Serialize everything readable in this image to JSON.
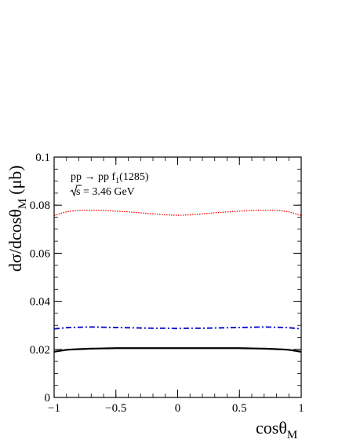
{
  "chart_data": {
    "type": "line",
    "xlabel": "cosθ",
    "xlabel_sub": "M",
    "ylabel": "dσ/dcosθ",
    "ylabel_sub": "M",
    "ylabel_unit": "(μb)",
    "xlim": [
      -1,
      1
    ],
    "ylim": [
      0,
      0.1
    ],
    "x_ticks": [
      -1,
      -0.5,
      0,
      0.5,
      1
    ],
    "x_tick_labels": [
      "−1",
      "−0.5",
      "0",
      "0.5",
      "1"
    ],
    "y_ticks": [
      0,
      0.02,
      0.04,
      0.06,
      0.08,
      0.1
    ],
    "y_tick_labels": [
      "0",
      "0.02",
      "0.04",
      "0.06",
      "0.08",
      "0.1"
    ],
    "annotations": {
      "reaction_pre": "pp → pp f",
      "reaction_sub": "1",
      "reaction_post": "(1285)",
      "energy_root": "s",
      "energy_rest": " = 3.46 GeV"
    },
    "grid": false,
    "series": [
      {
        "color": "#ff0000",
        "style": "dotted",
        "x": [
          -1,
          -0.9,
          -0.8,
          -0.7,
          -0.6,
          -0.5,
          -0.4,
          -0.3,
          -0.2,
          -0.1,
          0,
          0.1,
          0.2,
          0.3,
          0.4,
          0.5,
          0.6,
          0.7,
          0.8,
          0.9,
          1
        ],
        "y": [
          0.0757,
          0.0772,
          0.0778,
          0.0779,
          0.0778,
          0.0775,
          0.0772,
          0.0768,
          0.0764,
          0.076,
          0.0758,
          0.076,
          0.0764,
          0.0768,
          0.0772,
          0.0775,
          0.0778,
          0.0779,
          0.0778,
          0.0772,
          0.0757
        ]
      },
      {
        "color": "#0000cc",
        "style": "dashdot",
        "x": [
          -1,
          -0.9,
          -0.8,
          -0.7,
          -0.6,
          -0.5,
          -0.4,
          -0.3,
          -0.2,
          -0.1,
          0,
          0.1,
          0.2,
          0.3,
          0.4,
          0.5,
          0.6,
          0.7,
          0.8,
          0.9,
          1
        ],
        "y": [
          0.0285,
          0.029,
          0.0292,
          0.0293,
          0.0292,
          0.0291,
          0.029,
          0.0289,
          0.0288,
          0.0288,
          0.0287,
          0.0288,
          0.0288,
          0.0289,
          0.029,
          0.0291,
          0.0292,
          0.0293,
          0.0292,
          0.029,
          0.0285
        ]
      },
      {
        "color": "#000000",
        "style": "solid",
        "x": [
          -1,
          -0.9,
          -0.8,
          -0.7,
          -0.6,
          -0.5,
          -0.4,
          -0.3,
          -0.2,
          -0.1,
          0,
          0.1,
          0.2,
          0.3,
          0.4,
          0.5,
          0.6,
          0.7,
          0.8,
          0.9,
          1
        ],
        "y": [
          0.019,
          0.0198,
          0.0201,
          0.0203,
          0.0204,
          0.0205,
          0.0205,
          0.0205,
          0.0205,
          0.0205,
          0.0205,
          0.0205,
          0.0205,
          0.0205,
          0.0205,
          0.0205,
          0.0204,
          0.0203,
          0.0201,
          0.0198,
          0.019
        ]
      }
    ]
  }
}
